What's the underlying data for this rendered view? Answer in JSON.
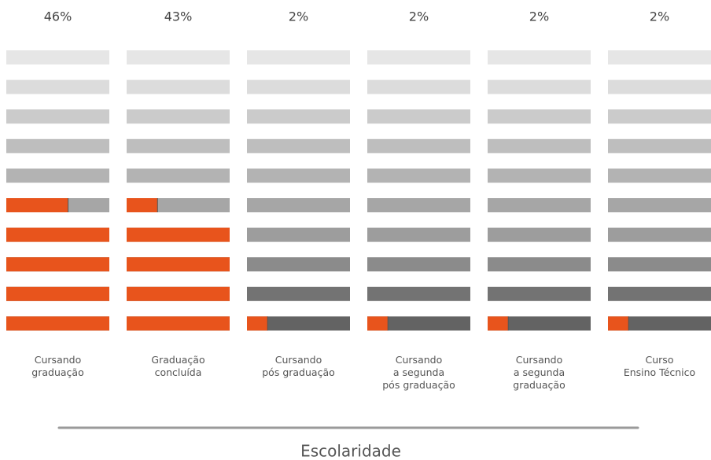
{
  "chart_data": {
    "type": "bar",
    "categories": [
      "Cursando\ngraduação",
      "Graduação\nconcluída",
      "Cursando\npós graduação",
      "Cursando\na segunda\npós graduação",
      "Cursando\na segunda\ngraduação",
      "Curso\nEnsino Técnico"
    ],
    "values": [
      46,
      43,
      2,
      2,
      2,
      2
    ],
    "value_labels": [
      "46%",
      "43%",
      "2%",
      "2%",
      "2%",
      "2%"
    ],
    "color": "#e8541c",
    "ylim": [
      0,
      100
    ],
    "x_label": "Escolaridade"
  }
}
